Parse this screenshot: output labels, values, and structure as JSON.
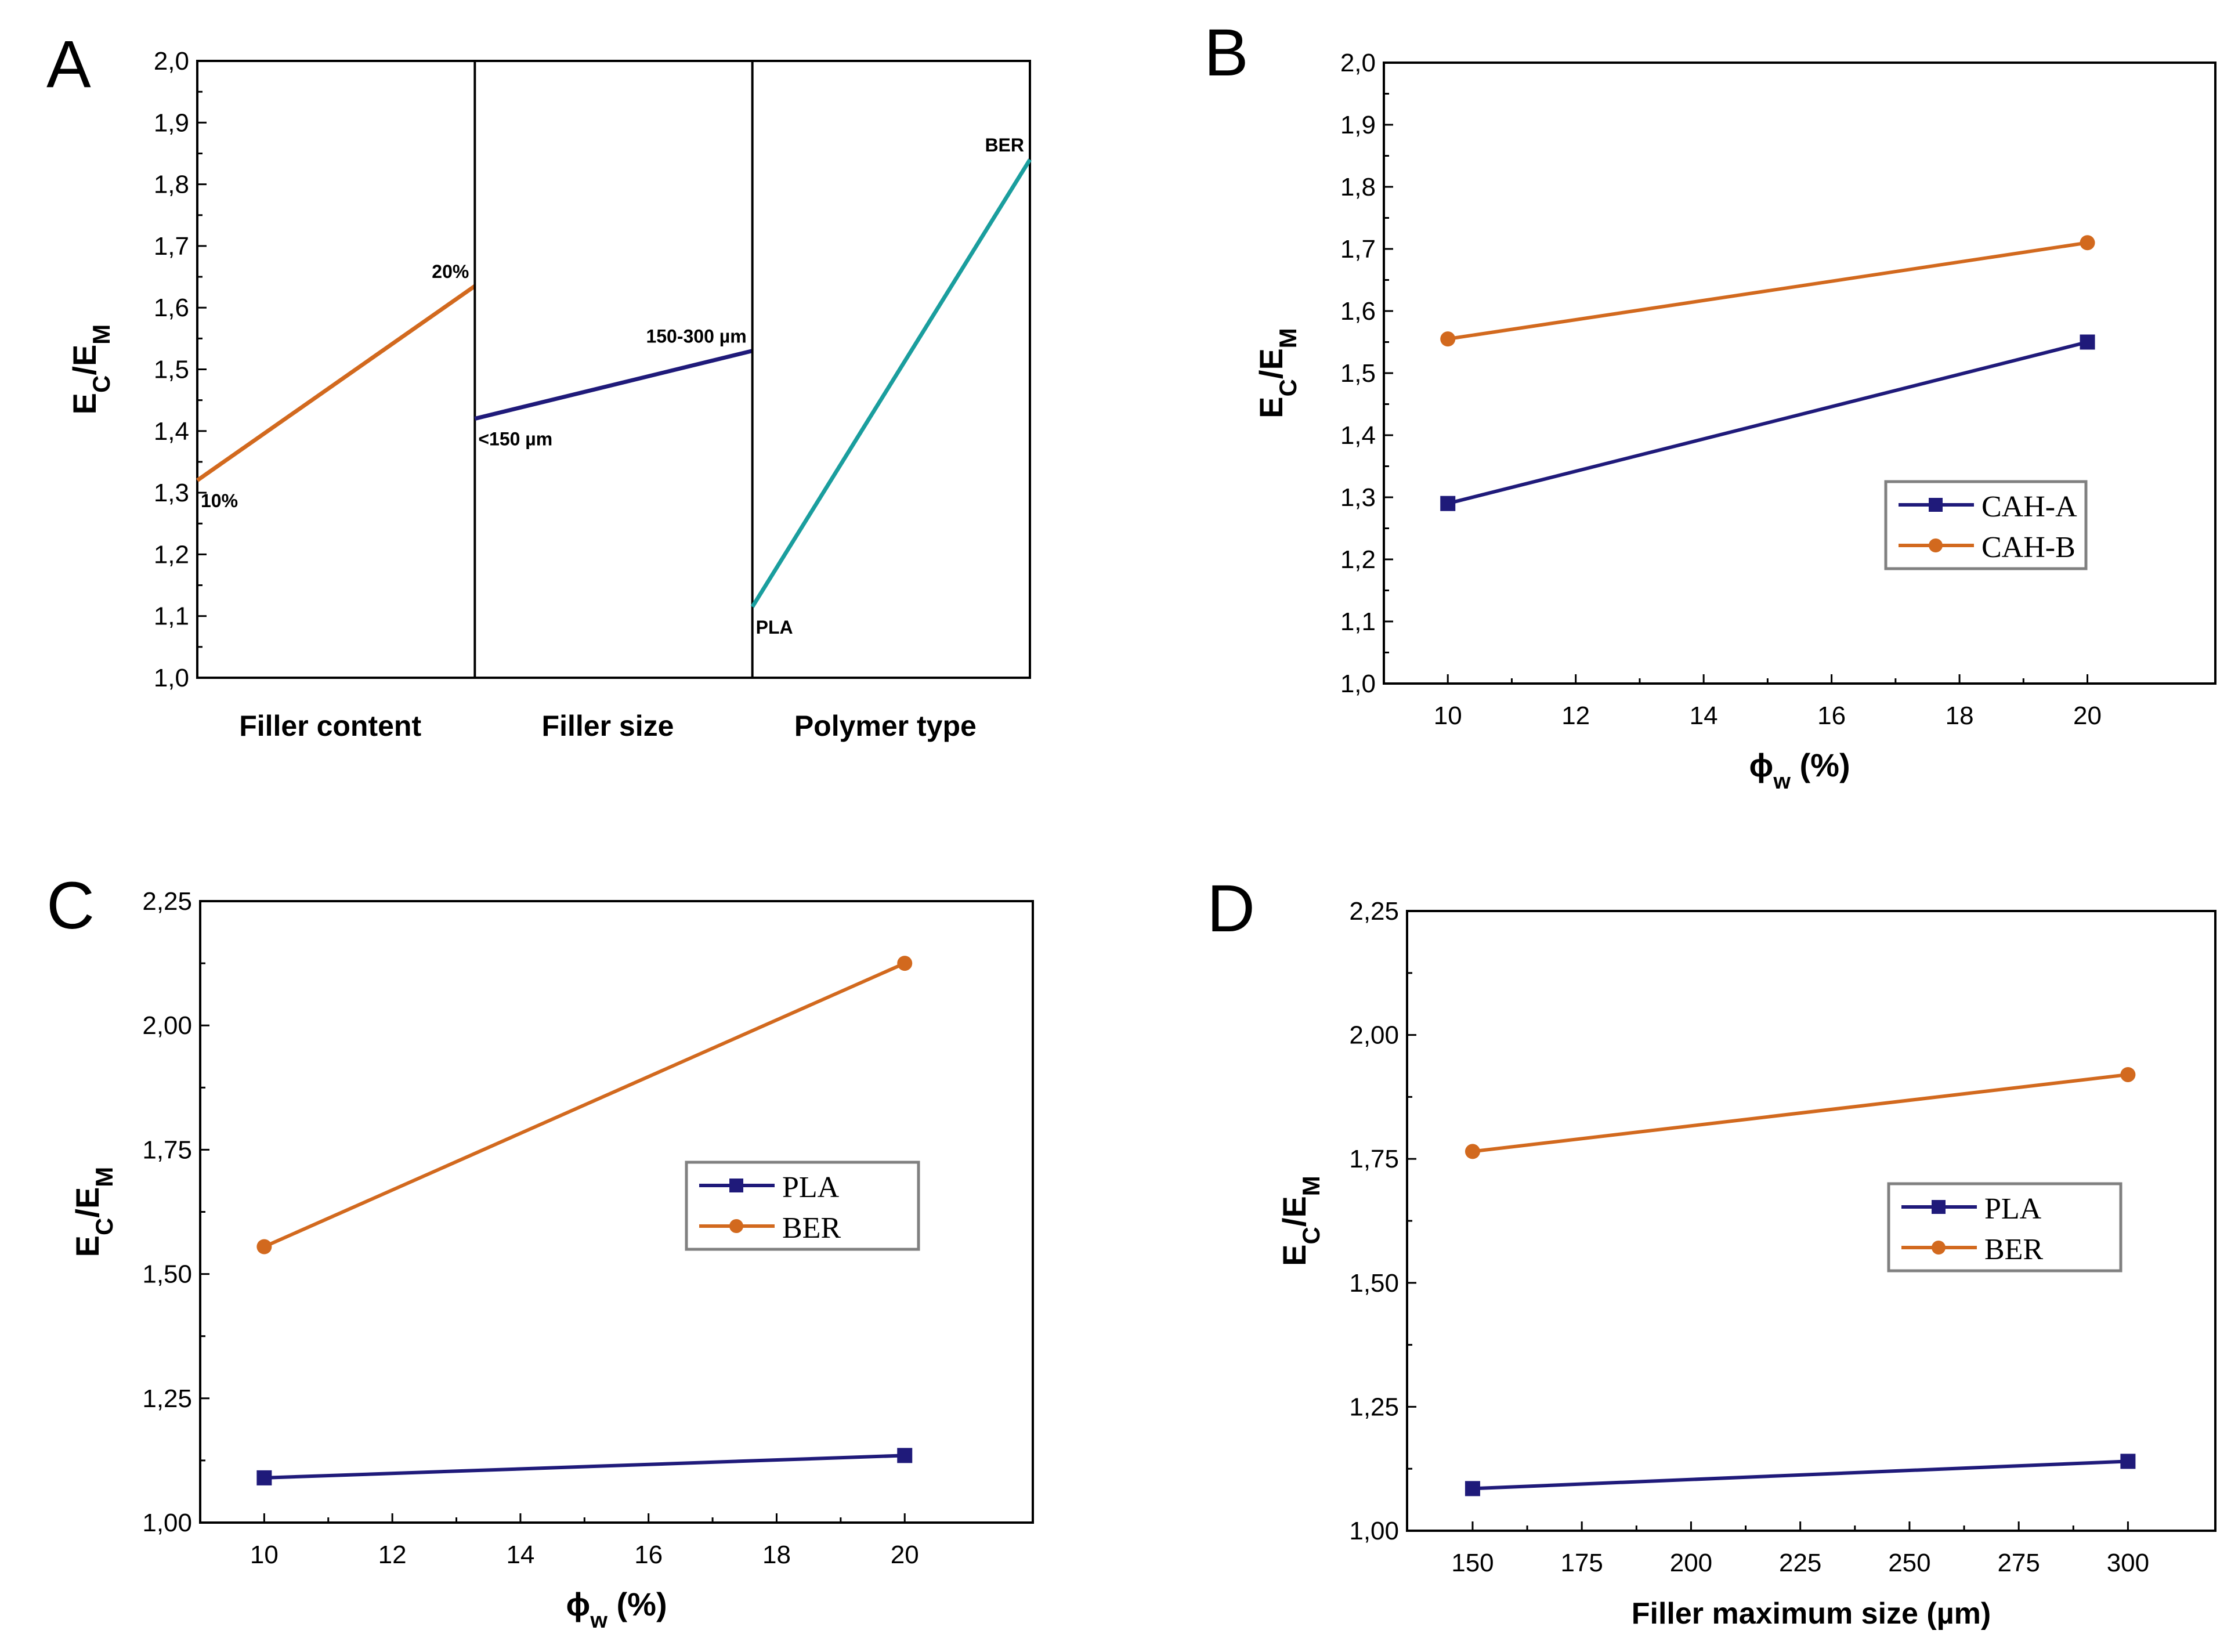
{
  "figure": {
    "decimal_mark": ",",
    "colors": {
      "orange": "#D2691E",
      "navy": "#1F1A7A",
      "teal": "#1A9E9E",
      "axis": "#000000",
      "legend_border": "#808080"
    }
  },
  "chart_data": [
    {
      "id": "A",
      "panel_label": "A",
      "type": "line",
      "subtype": "main-effects",
      "ylabel": "E_C/E_M",
      "ylim": [
        1.0,
        2.0
      ],
      "yticks": [
        "1,0",
        "1,1",
        "1,2",
        "1,3",
        "1,4",
        "1,5",
        "1,6",
        "1,7",
        "1,8",
        "1,9",
        "2,0"
      ],
      "segments": [
        {
          "factor": "Filler content",
          "color": "orange",
          "points": [
            {
              "level": "10%",
              "y": 1.32
            },
            {
              "level": "20%",
              "y": 1.635
            }
          ]
        },
        {
          "factor": "Filler size",
          "color": "navy",
          "points": [
            {
              "level": "<150 µm",
              "y": 1.42
            },
            {
              "level": "150-300 µm",
              "y": 1.53
            }
          ]
        },
        {
          "factor": "Polymer type",
          "color": "teal",
          "points": [
            {
              "level": "PLA",
              "y": 1.115
            },
            {
              "level": "BER",
              "y": 1.84
            }
          ]
        }
      ]
    },
    {
      "id": "B",
      "panel_label": "B",
      "type": "line",
      "xlabel": "ϕw (%)",
      "xlabel_main": "ϕ",
      "xlabel_sub": "w",
      "xlabel_rest": " (%)",
      "ylabel": "E_C/E_M",
      "xlim": [
        9,
        22
      ],
      "ylim": [
        1.0,
        2.0
      ],
      "xticks": [
        10,
        12,
        14,
        16,
        18,
        20
      ],
      "yticks": [
        "1,0",
        "1,1",
        "1,2",
        "1,3",
        "1,4",
        "1,5",
        "1,6",
        "1,7",
        "1,8",
        "1,9",
        "2,0"
      ],
      "legend_position": "center-right",
      "series": [
        {
          "name": "CAH-A",
          "color": "navy",
          "marker": "square",
          "x": [
            10,
            20
          ],
          "y": [
            1.29,
            1.55
          ]
        },
        {
          "name": "CAH-B",
          "color": "orange",
          "marker": "circle",
          "x": [
            10,
            20
          ],
          "y": [
            1.555,
            1.71
          ]
        }
      ]
    },
    {
      "id": "C",
      "panel_label": "C",
      "type": "line",
      "xlabel": "ϕw (%)",
      "xlabel_main": "ϕ",
      "xlabel_sub": "w",
      "xlabel_rest": " (%)",
      "ylabel": "E_C/E_M",
      "xlim": [
        9,
        22
      ],
      "ylim": [
        1.0,
        2.25
      ],
      "xticks": [
        10,
        12,
        14,
        16,
        18,
        20
      ],
      "yticks": [
        "1,00",
        "1,25",
        "1,50",
        "1,75",
        "2,00",
        "2,25"
      ],
      "legend_position": "center-right",
      "series": [
        {
          "name": "PLA",
          "color": "navy",
          "marker": "square",
          "x": [
            10,
            20
          ],
          "y": [
            1.09,
            1.135
          ]
        },
        {
          "name": "BER",
          "color": "orange",
          "marker": "circle",
          "x": [
            10,
            20
          ],
          "y": [
            1.555,
            2.125
          ]
        }
      ]
    },
    {
      "id": "D",
      "panel_label": "D",
      "type": "line",
      "xlabel": "Filler maximum size (µm)",
      "ylabel": "E_C/E_M",
      "xlim": [
        135,
        320
      ],
      "ylim": [
        1.0,
        2.25
      ],
      "xticks": [
        150,
        175,
        200,
        225,
        250,
        275,
        300
      ],
      "yticks": [
        "1,00",
        "1,25",
        "1,50",
        "1,75",
        "2,00",
        "2,25"
      ],
      "legend_position": "center-right",
      "series": [
        {
          "name": "PLA",
          "color": "navy",
          "marker": "square",
          "x": [
            150,
            300
          ],
          "y": [
            1.085,
            1.14
          ]
        },
        {
          "name": "BER",
          "color": "orange",
          "marker": "circle",
          "x": [
            150,
            300
          ],
          "y": [
            1.765,
            1.92
          ]
        }
      ]
    }
  ]
}
